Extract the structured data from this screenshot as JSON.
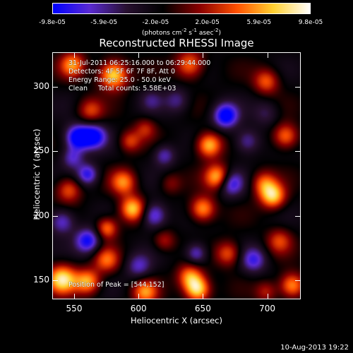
{
  "colorbar": {
    "ticks": [
      "-9.8e-05",
      "-5.9e-05",
      "-2.0e-05",
      "2.0e-05",
      "5.9e-05",
      "9.8e-05"
    ],
    "unit_main": "(photons cm",
    "unit_sup1": "-2",
    "unit_mid": " s",
    "unit_sup2": "-1",
    "unit_mid2": " asec",
    "unit_sup3": "-2",
    "unit_end": ")"
  },
  "info": {
    "time": "31-Jul-2011 06:25:16.000 to 06:29:44.000",
    "detectors": "Detectors: 4F 5F 6F 7F 8F, Att 0",
    "energy": "Energy Range: 25.0 - 50.0 keV",
    "clean": "Clean     Total counts: 5.58E+03",
    "peak": "Position of Peak = [544,152]"
  },
  "date_stamp": "10-Aug-2013 19:22",
  "chart_data": {
    "type": "heatmap",
    "title": "Reconstructed RHESSI Image",
    "xlabel": "Heliocentric X (arcsec)",
    "ylabel": "Heliocentric Y (arcsec)",
    "xlim": [
      533,
      726
    ],
    "ylim": [
      135,
      327
    ],
    "xticks": [
      550,
      600,
      650,
      700
    ],
    "yticks": [
      150,
      200,
      250,
      300
    ],
    "clim": [
      -9.8e-05,
      9.8e-05
    ],
    "colormap": [
      "#0000ff",
      "#5a2ad2",
      "#281030",
      "#000000",
      "#8a0000",
      "#ff5000",
      "#ffd030",
      "#ffffff"
    ],
    "blobs": [
      {
        "x": 580,
        "y": 310,
        "v": 1.0,
        "s": 8
      },
      {
        "x": 548,
        "y": 318,
        "v": 0.7,
        "s": 7
      },
      {
        "x": 640,
        "y": 318,
        "v": 0.7,
        "s": 8
      },
      {
        "x": 700,
        "y": 305,
        "v": 0.6,
        "s": 7
      },
      {
        "x": 562,
        "y": 282,
        "v": 0.5,
        "s": 7
      },
      {
        "x": 552,
        "y": 261,
        "v": -1.0,
        "s": 7
      },
      {
        "x": 565,
        "y": 262,
        "v": -0.8,
        "s": 7
      },
      {
        "x": 593,
        "y": 258,
        "v": 0.5,
        "s": 6
      },
      {
        "x": 605,
        "y": 268,
        "v": 0.4,
        "s": 6
      },
      {
        "x": 620,
        "y": 247,
        "v": -0.5,
        "s": 6
      },
      {
        "x": 655,
        "y": 255,
        "v": 0.9,
        "s": 7
      },
      {
        "x": 662,
        "y": 230,
        "v": 0.9,
        "s": 7
      },
      {
        "x": 650,
        "y": 205,
        "v": 0.8,
        "s": 7
      },
      {
        "x": 668,
        "y": 278,
        "v": -0.9,
        "s": 7
      },
      {
        "x": 685,
        "y": 258,
        "v": -0.5,
        "s": 7
      },
      {
        "x": 672,
        "y": 225,
        "v": -0.7,
        "s": 7
      },
      {
        "x": 698,
        "y": 225,
        "v": 0.6,
        "s": 7
      },
      {
        "x": 715,
        "y": 262,
        "v": 0.7,
        "s": 7
      },
      {
        "x": 705,
        "y": 215,
        "v": 0.9,
        "s": 7
      },
      {
        "x": 545,
        "y": 220,
        "v": 0.6,
        "s": 7
      },
      {
        "x": 560,
        "y": 232,
        "v": -0.7,
        "s": 6
      },
      {
        "x": 548,
        "y": 245,
        "v": -0.5,
        "s": 6
      },
      {
        "x": 588,
        "y": 226,
        "v": 0.7,
        "s": 7
      },
      {
        "x": 595,
        "y": 205,
        "v": 0.9,
        "s": 7
      },
      {
        "x": 612,
        "y": 200,
        "v": -0.7,
        "s": 7
      },
      {
        "x": 560,
        "y": 180,
        "v": -0.8,
        "s": 7
      },
      {
        "x": 540,
        "y": 195,
        "v": -0.6,
        "s": 7
      },
      {
        "x": 575,
        "y": 190,
        "v": 0.7,
        "s": 6
      },
      {
        "x": 575,
        "y": 165,
        "v": 0.6,
        "s": 7
      },
      {
        "x": 540,
        "y": 150,
        "v": 1.0,
        "s": 8
      },
      {
        "x": 560,
        "y": 148,
        "v": 0.8,
        "s": 7
      },
      {
        "x": 600,
        "y": 160,
        "v": -0.5,
        "s": 7
      },
      {
        "x": 605,
        "y": 140,
        "v": 0.7,
        "s": 7
      },
      {
        "x": 640,
        "y": 152,
        "v": 0.7,
        "s": 7
      },
      {
        "x": 646,
        "y": 142,
        "v": 1.0,
        "s": 7
      },
      {
        "x": 645,
        "y": 170,
        "v": -0.6,
        "s": 6
      },
      {
        "x": 670,
        "y": 170,
        "v": 0.6,
        "s": 7
      },
      {
        "x": 690,
        "y": 165,
        "v": -0.6,
        "s": 7
      },
      {
        "x": 710,
        "y": 180,
        "v": 0.5,
        "s": 7
      },
      {
        "x": 720,
        "y": 145,
        "v": 0.8,
        "s": 7
      },
      {
        "x": 700,
        "y": 140,
        "v": 0.4,
        "s": 6
      },
      {
        "x": 625,
        "y": 225,
        "v": 0.3,
        "s": 6
      },
      {
        "x": 630,
        "y": 290,
        "v": -0.4,
        "s": 7
      },
      {
        "x": 610,
        "y": 290,
        "v": -0.3,
        "s": 6
      },
      {
        "x": 700,
        "y": 280,
        "v": -0.3,
        "s": 7
      },
      {
        "x": 620,
        "y": 180,
        "v": 0.4,
        "s": 6
      }
    ]
  }
}
